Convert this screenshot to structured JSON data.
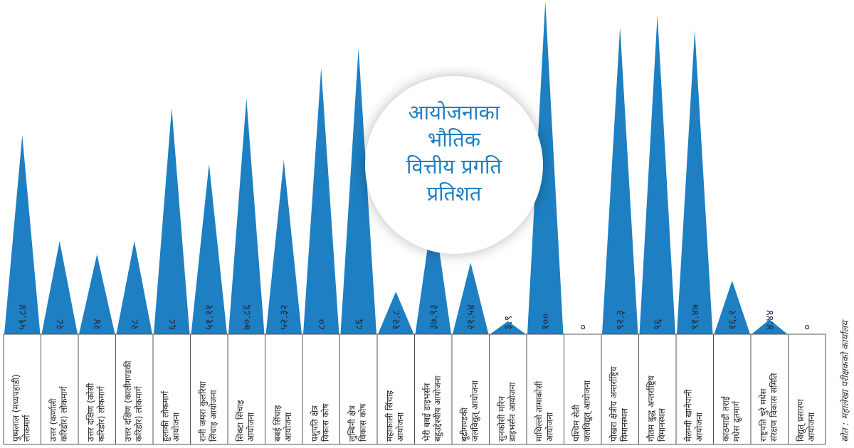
{
  "chart_data": {
    "type": "bar",
    "title_lines": [
      "आयोजनाका",
      "भौतिक",
      "वित्तीय प्रगति",
      "प्रतिशत"
    ],
    "source": "स्रोत : महालेखा परीक्षकको कार्यालय",
    "ylim": [
      0,
      100
    ],
    "colors": {
      "bar": "#1e7fc2",
      "grid": "#555555"
    },
    "categories": [
      [
        "पुष्पलाल (मध्यपहाडी)",
        "लोकमार्ग"
      ],
      [
        "उत्तर (कर्णाली",
        "करिडोर) लोकमार्ग"
      ],
      [
        "उत्तर दक्षिण (कोसी",
        "करिडोर) लोकमार्ग"
      ],
      [
        "उत्तर दक्षिण (कालीगण्डकी",
        "करिडोर) लोकमार्ग"
      ],
      [
        "हुलाकी लोकमार्ग",
        "आयोजना"
      ],
      [
        "रानी जमरा कुलरिया",
        "सिंचाइ आयोजना"
      ],
      [
        "सिक्टा सिंचाइ",
        "आयोजना"
      ],
      [
        "बबई सिंचाइ",
        "आयोजना"
      ],
      [
        "पशुपति क्षेत्र",
        "विकास कोष"
      ],
      [
        "लुम्बिनी क्षेत्र",
        "विकास कोष"
      ],
      [
        "महाकाली सिंचाइ",
        "आयोजना"
      ],
      [
        "भेरी बबई डाइभर्सन",
        "बहुउद्देश्यीय आयोजना"
      ],
      [
        "बूढीगण्डकी",
        "जलविद्युत् आयोजना"
      ],
      [
        "सुनकोसी मरिन",
        "डाइभर्सन आयोजना"
      ],
      [
        "माथिल्लो तामाकोसी",
        "आयोजना"
      ],
      [
        "पश्चिम सेती",
        "जलविद्युत् आयोजना"
      ],
      [
        "पोखरा क्षेत्रीय अन्तर्राष्ट्रिय",
        "विमानस्थल"
      ],
      [
        "गौतम बुद्ध अन्तर्राष्ट्रिय",
        "विमानस्थल"
      ],
      [
        "मेलम्ची खानेपानी",
        "आयोजना"
      ],
      [
        "काठमाडौं तराई",
        "मधेस द्रुतमार्ग"
      ],
      [
        "राष्ट्रपति चुरे मधेस",
        "संरक्षण विकास समिति"
      ],
      [
        "विद्युत् प्रसारण",
        "आयोजना"
      ]
    ],
    "value_labels": [
      "५९.८४",
      "२८",
      "२४",
      "२८",
      "६८",
      "५१.११",
      "७०.८६",
      "५२.३२",
      "८०",
      "८६",
      "१२.८",
      "३७.९३",
      "२१.५४",
      "३.९",
      "१००",
      "०",
      "९२.३",
      "९६",
      "९१.४७",
      "१६.१",
      "४.४४",
      "०"
    ],
    "values": [
      59.84,
      28,
      24,
      28,
      68,
      51.11,
      70.86,
      52.32,
      80,
      86,
      12.8,
      37.93,
      21.54,
      3.9,
      100,
      0,
      92.3,
      96,
      91.47,
      16.1,
      4.44,
      0
    ]
  }
}
